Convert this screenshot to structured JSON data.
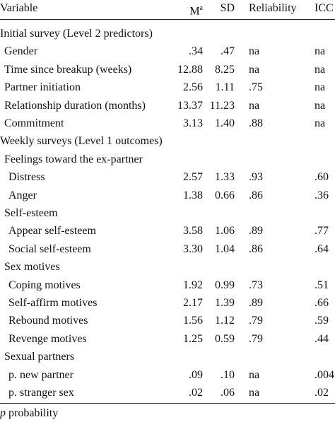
{
  "header": {
    "cells": [
      "Variable",
      "M",
      "SD",
      "Reliability",
      "ICC"
    ],
    "m_superscript": "a"
  },
  "sections": [
    {
      "title": "Initial survey (Level 2 predictors)",
      "rows": [
        [
          "Gender",
          ".34",
          ".47",
          "na",
          "na"
        ],
        [
          "Time since breakup (weeks)",
          "12.88",
          "8.25",
          "na",
          "na"
        ],
        [
          "Partner initiation",
          "2.56",
          "1.11",
          ".75",
          "na"
        ],
        [
          "Relationship duration (months)",
          "13.37",
          "11.23",
          "na",
          "na"
        ],
        [
          "Commitment",
          "3.13",
          "1.40",
          ".88",
          "na"
        ]
      ]
    },
    {
      "title": "Weekly surveys (Level 1 outcomes)",
      "groups": [
        {
          "title": "Feelings toward the ex-partner",
          "rows": [
            [
              "Distress",
              "2.57",
              "1.33",
              ".93",
              ".60"
            ],
            [
              "Anger",
              "1.38",
              "0.66",
              ".86",
              ".36"
            ]
          ]
        },
        {
          "title": "Self-esteem",
          "rows": [
            [
              "Appear self-esteem",
              "3.58",
              "1.06",
              ".89",
              ".77"
            ],
            [
              "Social self-esteem",
              "3.30",
              "1.04",
              ".86",
              ".64"
            ]
          ]
        },
        {
          "title": "Sex motives",
          "rows": [
            [
              "Coping motives",
              "1.92",
              "0.99",
              ".73",
              ".51"
            ],
            [
              "Self-affirm motives",
              "2.17",
              "1.39",
              ".89",
              ".66"
            ],
            [
              "Rebound motives",
              "1.56",
              "1.12",
              ".79",
              ".59"
            ],
            [
              "Revenge motives",
              "1.25",
              "0.59",
              ".79",
              ".44"
            ]
          ]
        },
        {
          "title": "Sexual partners",
          "rows": [
            [
              "p. new partner",
              ".09",
              ".10",
              "na",
              ".004"
            ],
            [
              "p. stranger sex",
              ".02",
              ".06",
              "na",
              ".02"
            ]
          ]
        }
      ]
    }
  ],
  "footnote": {
    "symbol": "p",
    "text": " probability"
  }
}
